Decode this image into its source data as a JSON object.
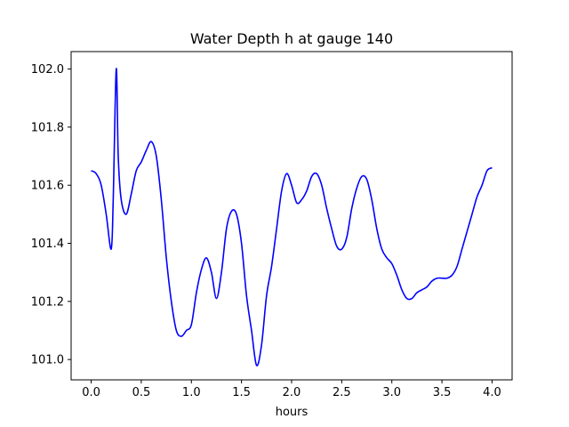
{
  "chart_data": {
    "type": "line",
    "title": "Water Depth h at gauge 140",
    "xlabel": "hours",
    "ylabel": "",
    "xlim": [
      -0.2,
      4.2
    ],
    "ylim": [
      100.93,
      102.06
    ],
    "x_ticks": [
      0.0,
      0.5,
      1.0,
      1.5,
      2.0,
      2.5,
      3.0,
      3.5,
      4.0
    ],
    "x_tick_labels": [
      "0.0",
      "0.5",
      "1.0",
      "1.5",
      "2.0",
      "2.5",
      "3.0",
      "3.5",
      "4.0"
    ],
    "y_ticks": [
      101.0,
      101.2,
      101.4,
      101.6,
      101.8,
      102.0
    ],
    "y_tick_labels": [
      "101.0",
      "101.2",
      "101.4",
      "101.6",
      "101.8",
      "102.0"
    ],
    "grid": false,
    "series": [
      {
        "color": "#0000ff",
        "x": [
          0.0,
          0.05,
          0.1,
          0.15,
          0.2,
          0.22,
          0.25,
          0.27,
          0.3,
          0.35,
          0.4,
          0.45,
          0.5,
          0.55,
          0.6,
          0.65,
          0.7,
          0.75,
          0.8,
          0.85,
          0.9,
          0.95,
          1.0,
          1.05,
          1.1,
          1.15,
          1.2,
          1.25,
          1.3,
          1.35,
          1.4,
          1.45,
          1.5,
          1.55,
          1.6,
          1.65,
          1.7,
          1.75,
          1.8,
          1.85,
          1.9,
          1.95,
          2.0,
          2.05,
          2.1,
          2.15,
          2.2,
          2.25,
          2.3,
          2.35,
          2.4,
          2.45,
          2.5,
          2.55,
          2.6,
          2.65,
          2.7,
          2.75,
          2.8,
          2.85,
          2.9,
          2.95,
          3.0,
          3.05,
          3.1,
          3.15,
          3.2,
          3.25,
          3.3,
          3.35,
          3.4,
          3.45,
          3.5,
          3.55,
          3.6,
          3.65,
          3.7,
          3.75,
          3.8,
          3.85,
          3.9,
          3.95,
          4.0
        ],
        "values": [
          101.65,
          101.64,
          101.6,
          101.5,
          101.38,
          101.55,
          102.0,
          101.7,
          101.55,
          101.5,
          101.57,
          101.65,
          101.68,
          101.72,
          101.75,
          101.7,
          101.55,
          101.35,
          101.2,
          101.1,
          101.08,
          101.1,
          101.12,
          101.23,
          101.31,
          101.35,
          101.3,
          101.21,
          101.3,
          101.45,
          101.51,
          101.5,
          101.4,
          101.22,
          101.1,
          100.98,
          101.05,
          101.22,
          101.32,
          101.45,
          101.58,
          101.64,
          101.6,
          101.54,
          101.55,
          101.58,
          101.63,
          101.64,
          101.6,
          101.52,
          101.45,
          101.39,
          101.38,
          101.42,
          101.52,
          101.59,
          101.63,
          101.62,
          101.55,
          101.45,
          101.38,
          101.35,
          101.33,
          101.29,
          101.24,
          101.21,
          101.21,
          101.23,
          101.24,
          101.25,
          101.27,
          101.28,
          101.28,
          101.28,
          101.29,
          101.32,
          101.38,
          101.44,
          101.5,
          101.56,
          101.6,
          101.65,
          101.66
        ]
      }
    ]
  }
}
